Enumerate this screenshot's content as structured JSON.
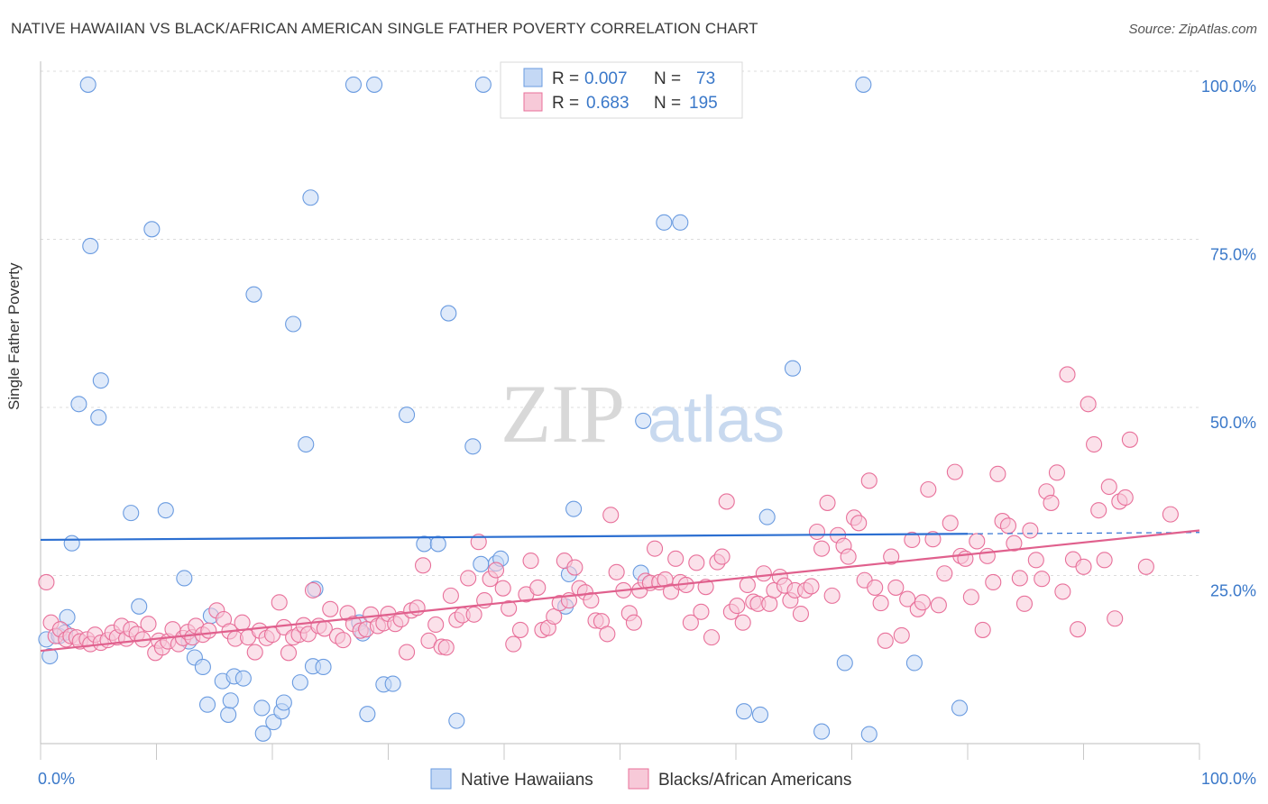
{
  "title": "NATIVE HAWAIIAN VS BLACK/AFRICAN AMERICAN SINGLE FATHER POVERTY CORRELATION CHART",
  "source": "Source: ZipAtlas.com",
  "watermark": {
    "zip": "ZIP",
    "atlas": "atlas"
  },
  "chart_data": {
    "type": "scatter",
    "title": "NATIVE HAWAIIAN VS BLACK/AFRICAN AMERICAN SINGLE FATHER POVERTY CORRELATION CHART",
    "xlabel": "",
    "ylabel": "Single Father Poverty",
    "xlim": [
      0,
      100
    ],
    "ylim": [
      0,
      100
    ],
    "x_tick_labels": [
      "0.0%",
      "100.0%"
    ],
    "y_tick_labels": [
      "25.0%",
      "50.0%",
      "75.0%",
      "100.0%"
    ],
    "y_ticks": [
      25,
      50,
      75,
      100
    ],
    "grid": true,
    "legend_position": "bottom",
    "stats_box": [
      {
        "r_label": "R =",
        "r_value": "0.007",
        "n_label": "N =",
        "n_value": "73"
      },
      {
        "r_label": "R =",
        "r_value": "0.683",
        "n_label": "N =",
        "n_value": "195"
      }
    ],
    "series": [
      {
        "name": "Native Hawaiians",
        "color": "#6a9be0",
        "fill": "#c4d8f5",
        "trend": {
          "x": [
            0,
            80
          ],
          "y": [
            30.3,
            31.2
          ],
          "dash_to": [
            80,
            100
          ],
          "dash_y": [
            31.2,
            31.4
          ]
        },
        "points": [
          [
            0.5,
            15.5
          ],
          [
            0.8,
            13
          ],
          [
            1.6,
            16
          ],
          [
            2.1,
            16.5
          ],
          [
            2.3,
            18.8
          ],
          [
            2.7,
            29.8
          ],
          [
            3.3,
            50.5
          ],
          [
            4.1,
            98
          ],
          [
            4.3,
            74
          ],
          [
            5.0,
            48.5
          ],
          [
            5.2,
            54
          ],
          [
            7.8,
            34.3
          ],
          [
            8.5,
            20.4
          ],
          [
            9.6,
            76.5
          ],
          [
            10.8,
            34.7
          ],
          [
            12.4,
            24.6
          ],
          [
            12.8,
            15.2
          ],
          [
            13.3,
            12.8
          ],
          [
            14.0,
            11.4
          ],
          [
            14.4,
            5.8
          ],
          [
            14.7,
            19
          ],
          [
            15.7,
            9.3
          ],
          [
            16.2,
            4.3
          ],
          [
            16.4,
            6.4
          ],
          [
            16.7,
            10
          ],
          [
            17.5,
            9.7
          ],
          [
            18.4,
            66.8
          ],
          [
            19.1,
            5.3
          ],
          [
            19.2,
            1.5
          ],
          [
            20.1,
            3.2
          ],
          [
            20.8,
            4.8
          ],
          [
            21.0,
            6.1
          ],
          [
            21.8,
            62.4
          ],
          [
            22.4,
            9.1
          ],
          [
            22.9,
            44.5
          ],
          [
            23.3,
            81.2
          ],
          [
            23.7,
            23
          ],
          [
            23.5,
            11.5
          ],
          [
            24.4,
            11.4
          ],
          [
            27.0,
            98
          ],
          [
            27.5,
            18
          ],
          [
            27.8,
            16.4
          ],
          [
            28.2,
            4.4
          ],
          [
            28.8,
            98
          ],
          [
            29.6,
            8.8
          ],
          [
            30.4,
            8.9
          ],
          [
            31.6,
            48.9
          ],
          [
            33.1,
            29.7
          ],
          [
            34.3,
            29.7
          ],
          [
            35.2,
            64
          ],
          [
            35.9,
            3.4
          ],
          [
            37.3,
            44.2
          ],
          [
            38.0,
            26.7
          ],
          [
            38.2,
            98
          ],
          [
            39.3,
            26.8
          ],
          [
            39.7,
            27.5
          ],
          [
            45.3,
            20.4
          ],
          [
            45.6,
            25.2
          ],
          [
            46.0,
            34.9
          ],
          [
            51.8,
            25.4
          ],
          [
            52.0,
            48
          ],
          [
            53.8,
            77.5
          ],
          [
            55.2,
            77.5
          ],
          [
            60.7,
            4.8
          ],
          [
            62.1,
            4.3
          ],
          [
            62.7,
            33.7
          ],
          [
            64.9,
            55.8
          ],
          [
            67.4,
            1.8
          ],
          [
            69.4,
            12
          ],
          [
            71.0,
            98
          ],
          [
            71.5,
            1.4
          ],
          [
            75.4,
            12
          ],
          [
            79.3,
            5.3
          ]
        ]
      },
      {
        "name": "Blacks/African Americans",
        "color": "#e8709a",
        "fill": "#f7c9d8",
        "trend": {
          "x": [
            0,
            100
          ],
          "y": [
            13.8,
            31.7
          ]
        },
        "points": [
          [
            0.5,
            24
          ],
          [
            0.9,
            18
          ],
          [
            1.3,
            16
          ],
          [
            1.7,
            17
          ],
          [
            2.2,
            15.5
          ],
          [
            2.6,
            16
          ],
          [
            3.1,
            15.8
          ],
          [
            3.4,
            15.2
          ],
          [
            4.0,
            15.5
          ],
          [
            4.3,
            14.8
          ],
          [
            4.7,
            16.2
          ],
          [
            5.2,
            15
          ],
          [
            5.8,
            15.4
          ],
          [
            6.2,
            16.5
          ],
          [
            6.6,
            15.8
          ],
          [
            7.0,
            17.5
          ],
          [
            7.4,
            15.6
          ],
          [
            7.8,
            17
          ],
          [
            8.3,
            16.3
          ],
          [
            8.8,
            15.5
          ],
          [
            9.3,
            17.8
          ],
          [
            9.9,
            13.5
          ],
          [
            10.2,
            15.3
          ],
          [
            10.5,
            14.3
          ],
          [
            11.0,
            15.2
          ],
          [
            11.4,
            17
          ],
          [
            11.9,
            14.8
          ],
          [
            12.3,
            15.7
          ],
          [
            12.7,
            16.6
          ],
          [
            13.1,
            15.8
          ],
          [
            13.4,
            17.5
          ],
          [
            14.0,
            16.2
          ],
          [
            14.5,
            16.8
          ],
          [
            15.2,
            19.8
          ],
          [
            15.8,
            18.5
          ],
          [
            16.3,
            16.7
          ],
          [
            16.8,
            15.6
          ],
          [
            17.4,
            18
          ],
          [
            17.9,
            15.8
          ],
          [
            18.5,
            13.6
          ],
          [
            18.9,
            16.8
          ],
          [
            19.5,
            15.7
          ],
          [
            20.0,
            16.2
          ],
          [
            20.6,
            21
          ],
          [
            21.0,
            17.3
          ],
          [
            21.4,
            13.5
          ],
          [
            21.8,
            15.8
          ],
          [
            22.3,
            16.2
          ],
          [
            22.7,
            17.6
          ],
          [
            23.1,
            16.3
          ],
          [
            23.5,
            22.8
          ],
          [
            24.0,
            17.5
          ],
          [
            24.5,
            17.1
          ],
          [
            25.0,
            20
          ],
          [
            25.6,
            16
          ],
          [
            26.1,
            15.4
          ],
          [
            26.5,
            19.4
          ],
          [
            27.0,
            17.8
          ],
          [
            27.6,
            16.8
          ],
          [
            28.1,
            17
          ],
          [
            28.5,
            19.2
          ],
          [
            29.1,
            17.5
          ],
          [
            29.6,
            17.9
          ],
          [
            30.0,
            19.3
          ],
          [
            30.6,
            17.8
          ],
          [
            31.1,
            18.5
          ],
          [
            31.6,
            13.6
          ],
          [
            32.0,
            19.8
          ],
          [
            32.5,
            20.2
          ],
          [
            33.0,
            26.5
          ],
          [
            33.5,
            15.3
          ],
          [
            34.1,
            17.7
          ],
          [
            34.6,
            14.4
          ],
          [
            35.0,
            14.3
          ],
          [
            35.4,
            22
          ],
          [
            35.9,
            18.4
          ],
          [
            36.4,
            19.1
          ],
          [
            36.9,
            24.6
          ],
          [
            37.4,
            19.2
          ],
          [
            37.8,
            30
          ],
          [
            38.3,
            21.3
          ],
          [
            38.8,
            24.5
          ],
          [
            39.3,
            25.8
          ],
          [
            39.9,
            23.1
          ],
          [
            40.4,
            20.1
          ],
          [
            40.8,
            14.8
          ],
          [
            41.4,
            16.9
          ],
          [
            41.9,
            22.2
          ],
          [
            42.3,
            27.2
          ],
          [
            42.9,
            23.2
          ],
          [
            43.3,
            16.9
          ],
          [
            43.8,
            17.2
          ],
          [
            44.3,
            18.9
          ],
          [
            44.8,
            20.9
          ],
          [
            45.2,
            27.2
          ],
          [
            45.6,
            21.3
          ],
          [
            46.1,
            26.2
          ],
          [
            46.5,
            23.1
          ],
          [
            47.0,
            22.5
          ],
          [
            47.5,
            21.3
          ],
          [
            47.9,
            18.3
          ],
          [
            48.4,
            18.2
          ],
          [
            48.9,
            16.3
          ],
          [
            49.2,
            34
          ],
          [
            49.7,
            25.5
          ],
          [
            50.3,
            22.8
          ],
          [
            50.8,
            19.4
          ],
          [
            51.2,
            18
          ],
          [
            51.7,
            22.8
          ],
          [
            52.2,
            24.2
          ],
          [
            52.6,
            23.9
          ],
          [
            53.0,
            29
          ],
          [
            53.4,
            24
          ],
          [
            53.9,
            24.4
          ],
          [
            54.4,
            22.6
          ],
          [
            54.8,
            27.5
          ],
          [
            55.2,
            24
          ],
          [
            55.7,
            23.6
          ],
          [
            56.1,
            18
          ],
          [
            56.6,
            26.9
          ],
          [
            57.0,
            19.6
          ],
          [
            57.4,
            23.3
          ],
          [
            57.9,
            15.8
          ],
          [
            58.4,
            27
          ],
          [
            58.8,
            27.8
          ],
          [
            59.2,
            36
          ],
          [
            59.6,
            19.6
          ],
          [
            60.1,
            20.5
          ],
          [
            60.6,
            18
          ],
          [
            61.0,
            23.6
          ],
          [
            61.5,
            21.1
          ],
          [
            61.9,
            20.8
          ],
          [
            62.4,
            25.3
          ],
          [
            62.9,
            20.8
          ],
          [
            63.3,
            22.8
          ],
          [
            63.8,
            24.8
          ],
          [
            64.2,
            23.5
          ],
          [
            64.7,
            21.3
          ],
          [
            65.1,
            22.8
          ],
          [
            65.6,
            19.3
          ],
          [
            66.0,
            22.8
          ],
          [
            66.5,
            23.4
          ],
          [
            67.0,
            31.5
          ],
          [
            67.4,
            29
          ],
          [
            67.9,
            35.8
          ],
          [
            68.3,
            22
          ],
          [
            68.8,
            31
          ],
          [
            69.3,
            29.4
          ],
          [
            69.7,
            27.8
          ],
          [
            70.2,
            33.6
          ],
          [
            70.6,
            32.8
          ],
          [
            71.1,
            24.3
          ],
          [
            71.5,
            39.1
          ],
          [
            72.0,
            23.2
          ],
          [
            72.5,
            20.9
          ],
          [
            72.9,
            15.3
          ],
          [
            73.4,
            27.8
          ],
          [
            73.8,
            23.2
          ],
          [
            74.3,
            16.1
          ],
          [
            74.8,
            21.5
          ],
          [
            75.2,
            30.3
          ],
          [
            75.7,
            20
          ],
          [
            76.1,
            21
          ],
          [
            76.6,
            37.8
          ],
          [
            77.0,
            30.4
          ],
          [
            77.5,
            20.6
          ],
          [
            78.0,
            25.3
          ],
          [
            78.5,
            32.8
          ],
          [
            78.9,
            40.4
          ],
          [
            79.4,
            27.9
          ],
          [
            79.8,
            27.5
          ],
          [
            80.3,
            21.8
          ],
          [
            80.8,
            30.1
          ],
          [
            81.3,
            16.9
          ],
          [
            81.7,
            27.9
          ],
          [
            82.2,
            24
          ],
          [
            82.6,
            40.1
          ],
          [
            83.0,
            33.1
          ],
          [
            83.5,
            32.4
          ],
          [
            84.0,
            29.8
          ],
          [
            84.5,
            24.6
          ],
          [
            84.9,
            20.8
          ],
          [
            85.4,
            31.7
          ],
          [
            85.9,
            27.3
          ],
          [
            86.4,
            24.5
          ],
          [
            86.8,
            37.5
          ],
          [
            87.2,
            35.8
          ],
          [
            87.7,
            40.3
          ],
          [
            88.2,
            22.6
          ],
          [
            88.6,
            54.9
          ],
          [
            89.1,
            27.4
          ],
          [
            89.5,
            17
          ],
          [
            90.0,
            26.3
          ],
          [
            90.4,
            50.5
          ],
          [
            90.9,
            44.5
          ],
          [
            91.3,
            34.7
          ],
          [
            91.8,
            27.3
          ],
          [
            92.2,
            38.2
          ],
          [
            92.7,
            18.6
          ],
          [
            93.1,
            36
          ],
          [
            93.6,
            36.6
          ],
          [
            94.0,
            45.2
          ],
          [
            95.4,
            26.3
          ],
          [
            97.5,
            34.1
          ]
        ]
      }
    ]
  },
  "legend": {
    "items": [
      {
        "label": "Native Hawaiians"
      },
      {
        "label": "Blacks/African Americans"
      }
    ]
  }
}
